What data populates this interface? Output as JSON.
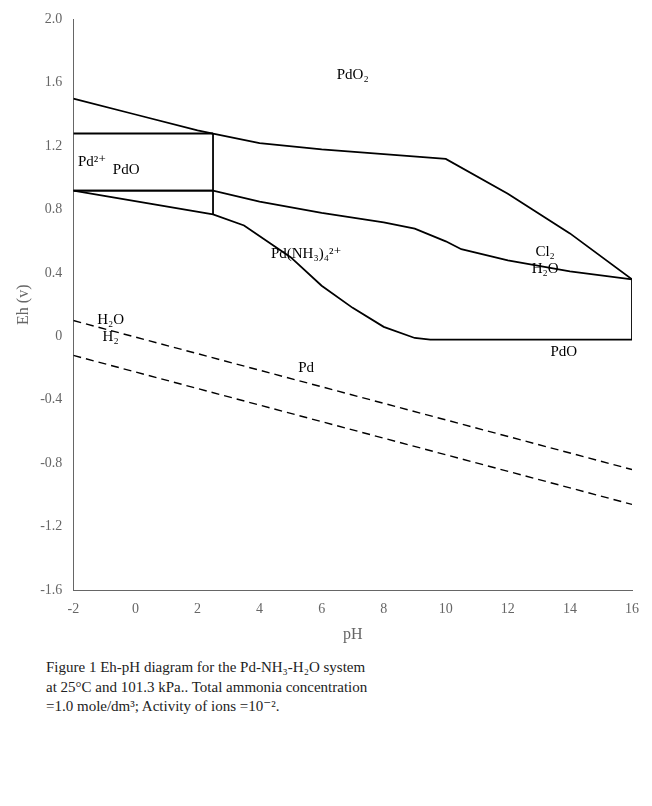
{
  "chart_data": {
    "type": "line",
    "xlabel": "pH",
    "ylabel": "Eh (v)",
    "xlim": [
      -2,
      16
    ],
    "ylim": [
      -1.6,
      2.0
    ],
    "xticks": [
      -2,
      0,
      2,
      4,
      6,
      8,
      10,
      12,
      14,
      16
    ],
    "yticks": [
      -1.6,
      -1.2,
      -0.8,
      -0.4,
      0,
      0.4,
      0.8,
      1.2,
      1.6,
      {
        "value": 2.0,
        "label": "2.0"
      }
    ],
    "grid": false,
    "series": [
      {
        "color": "#000000",
        "line_style": "dashed",
        "x": [
          -2,
          16
        ],
        "values": [
          0.1,
          -0.84
        ]
      },
      {
        "color": "#000000",
        "line_style": "dashed",
        "x": [
          -2,
          16
        ],
        "values": [
          -0.12,
          -1.06
        ]
      },
      {
        "color": "#000000",
        "line_style": "solid",
        "x": [
          -2,
          0,
          2,
          2.5,
          4,
          6,
          8,
          10,
          12,
          14,
          16
        ],
        "values": [
          1.5,
          1.4,
          1.3,
          1.28,
          1.22,
          1.18,
          1.15,
          1.12,
          0.9,
          0.65,
          0.36
        ]
      },
      {
        "color": "#000000",
        "line_style": "solid",
        "x": [
          -2,
          2.5,
          4,
          6,
          8,
          9,
          10,
          10.5,
          12,
          14,
          16
        ],
        "values": [
          0.92,
          0.92,
          0.85,
          0.78,
          0.72,
          0.68,
          0.6,
          0.55,
          0.48,
          0.41,
          0.36
        ]
      },
      {
        "color": "#000000",
        "line_style": "solid",
        "x": [
          -2,
          2.5,
          3.5,
          5,
          6,
          7,
          8,
          9,
          9.5,
          10,
          11,
          12,
          13,
          14,
          15,
          16
        ],
        "values": [
          0.92,
          0.77,
          0.7,
          0.5,
          0.32,
          0.18,
          0.06,
          -0.01,
          -0.02,
          -0.02,
          -0.02,
          -0.02,
          -0.02,
          -0.02,
          -0.02,
          -0.02
        ]
      },
      {
        "color": "#000000",
        "line_style": "solid",
        "x": [
          -2,
          2.5
        ],
        "values": [
          1.28,
          1.28
        ]
      },
      {
        "color": "#000000",
        "line_style": "solid",
        "x": [
          -2,
          2.5
        ],
        "values": [
          0.92,
          0.92
        ]
      },
      {
        "color": "#000000",
        "line_style": "solid",
        "x": [
          2.5,
          2.5
        ],
        "values": [
          0.77,
          1.28
        ]
      },
      {
        "color": "#000000",
        "line_style": "solid",
        "x": [
          16,
          16
        ],
        "values": [
          -0.02,
          0.36
        ]
      }
    ],
    "annotations": [
      {
        "text": "PdO₂",
        "x": 7.0,
        "y": 1.65
      },
      {
        "text": "PdO",
        "x": -0.3,
        "y": 1.05
      },
      {
        "text": "Pd²⁺",
        "x": -1.85,
        "y": 1.1
      },
      {
        "text": "Pd(NH₃)₄²⁺",
        "x": 5.5,
        "y": 0.52
      },
      {
        "text": "Pd",
        "x": 5.5,
        "y": -0.2
      },
      {
        "text": "PdO",
        "x": 13.8,
        "y": -0.1
      },
      {
        "text": "Cl₂\nH₂O",
        "x": 13.2,
        "y": 0.48
      },
      {
        "text": "H₂O\nH₂",
        "x": -0.8,
        "y": 0.05
      }
    ],
    "caption": "Figure 1  Eh-pH diagram for the Pd-NH₃-H₂O system\nat 25°C and 101.3 kPa.. Total ammonia concentration\n=1.0 mole/dm³; Activity of ions =10⁻²."
  }
}
